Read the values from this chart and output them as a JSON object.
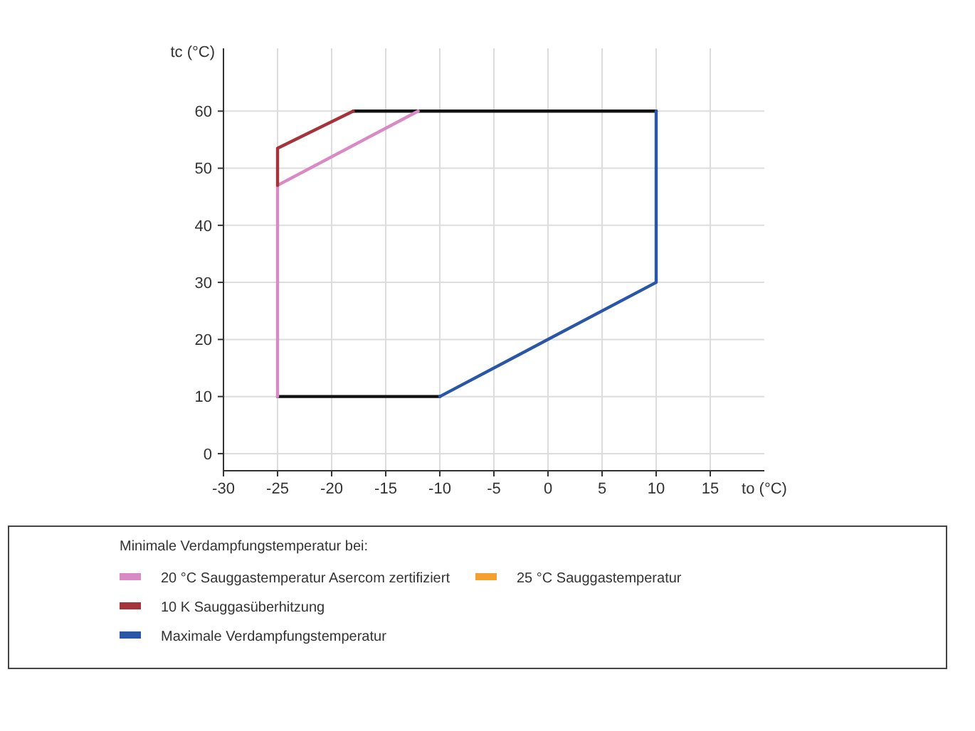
{
  "chart_data": {
    "type": "line",
    "xlabel": "to (°C)",
    "ylabel": "tc (°C)",
    "legend_title": "Minimale Verdampfungstemperatur bei:",
    "xlim": [
      -30,
      20
    ],
    "ylim": [
      -3,
      71
    ],
    "xticks": [
      -30,
      -25,
      -20,
      -15,
      -10,
      -5,
      0,
      5,
      10,
      15
    ],
    "yticks": [
      0,
      10,
      20,
      30,
      40,
      50,
      60
    ],
    "grid": true,
    "legend": "bottom",
    "marker": "none",
    "line_style": "solid",
    "series": [
      {
        "color": "#111111",
        "x": [
          -25,
          -10
        ],
        "values": [
          10,
          10
        ]
      },
      {
        "color": "#111111",
        "x": [
          -18,
          10
        ],
        "values": [
          60,
          60
        ]
      },
      {
        "name": "20 °C Sauggastemperatur Asercom zertifiziert",
        "color": "#d98ac4",
        "x": [
          -25,
          -25,
          -12
        ],
        "values": [
          10,
          47,
          60
        ]
      },
      {
        "name": "25 °C Sauggastemperatur",
        "color": "#f4a02f"
      },
      {
        "name": "10 K Sauggasüberhitzung",
        "color": "#a5333a",
        "x": [
          -25,
          -25,
          -18
        ],
        "values": [
          47,
          53.5,
          60
        ]
      },
      {
        "name": "Maximale Verdampfungstemperatur",
        "color": "#2a56a8",
        "x": [
          -10,
          10,
          10
        ],
        "values": [
          10,
          30,
          60
        ]
      }
    ]
  }
}
